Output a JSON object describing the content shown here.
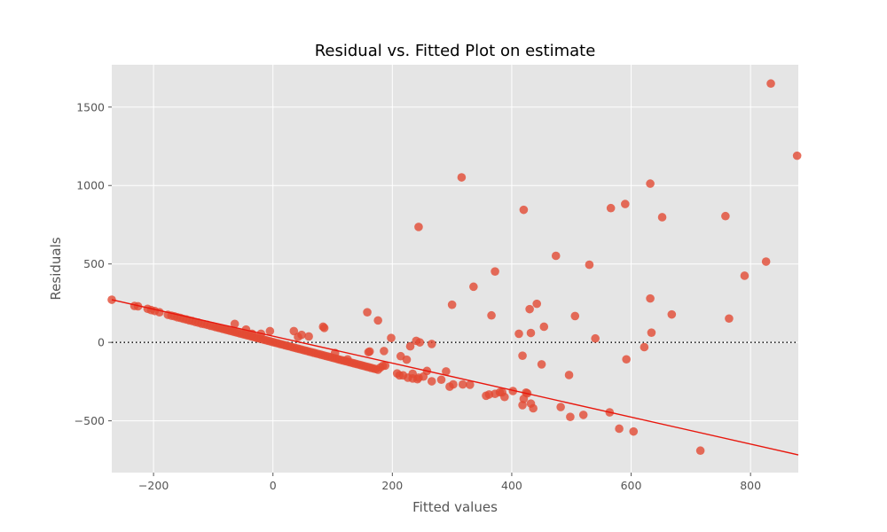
{
  "chart_data": {
    "type": "scatter",
    "title": "Residual vs. Fitted Plot on estimate",
    "xlabel": "Fitted values",
    "ylabel": "Residuals",
    "xlim": [
      -270,
      880
    ],
    "ylim": [
      -830,
      1770
    ],
    "xticks": [
      -200,
      0,
      200,
      400,
      600,
      800
    ],
    "yticks": [
      -500,
      0,
      500,
      1000,
      1500
    ],
    "xtick_labels": [
      "−200",
      "0",
      "200",
      "400",
      "600",
      "800"
    ],
    "ytick_labels": [
      "−500",
      "0",
      "500",
      "1000",
      "1500"
    ],
    "grid": true,
    "legend": "none",
    "colors": {
      "background": "#e5e5e5",
      "points": "#e24a33",
      "fit_line": "#e8170d",
      "zero_line": "#222222"
    },
    "fit_line": {
      "x": [
        -270,
        880
      ],
      "y": [
        272,
        -717
      ]
    },
    "zero_line": {
      "y": 0
    },
    "series": [
      {
        "x": [
          -270,
          -232,
          -226,
          -210,
          -204,
          -198,
          -190,
          -176,
          -170,
          -165,
          -160,
          -155,
          -150,
          -145,
          -140,
          -135,
          -130,
          -125,
          -120,
          -115,
          -110,
          -105,
          -100,
          -96,
          -92,
          -88,
          -84,
          -80,
          -76,
          -72,
          -68,
          -64,
          -60,
          -56,
          -52,
          -48,
          -44,
          -40,
          -36,
          -32,
          -28,
          -24,
          -20,
          -16,
          -12,
          -8,
          -4,
          0,
          4,
          8,
          12,
          16,
          20,
          24,
          28,
          32,
          36,
          40,
          44,
          48,
          52,
          56,
          60,
          64,
          68,
          72,
          76,
          80,
          84,
          88,
          92,
          96,
          100,
          104,
          108,
          112,
          116,
          120,
          124,
          128,
          132,
          136,
          140,
          144,
          148,
          152,
          156,
          160,
          164,
          168,
          172,
          176,
          180,
          184,
          188,
          -64,
          -45,
          -35,
          -20,
          -5,
          35,
          42,
          48,
          60,
          84,
          86,
          104,
          125,
          160,
          162,
          186,
          198,
          158,
          176,
          208,
          214,
          218,
          224,
          230,
          234,
          240,
          244,
          252,
          258,
          266,
          282,
          290,
          296,
          302,
          318,
          330,
          357,
          362,
          372,
          380,
          384,
          388,
          402,
          418,
          420,
          424,
          426,
          432,
          436,
          482,
          498,
          520,
          244,
          316,
          420,
          474,
          530,
          566,
          590,
          632,
          652,
          758,
          834,
          878,
          246,
          266,
          300,
          336,
          366,
          372,
          412,
          418,
          430,
          432,
          442,
          450,
          454,
          496,
          506,
          540,
          564,
          580,
          592,
          604,
          622,
          632,
          634,
          668,
          716,
          764,
          790,
          826,
          212,
          226,
          234,
          242
        ],
        "y": [
          272,
          232,
          230,
          214,
          206,
          200,
          192,
          176,
          170,
          166,
          160,
          156,
          150,
          146,
          140,
          136,
          130,
          126,
          120,
          116,
          112,
          106,
          102,
          98,
          94,
          90,
          86,
          82,
          78,
          74,
          70,
          66,
          62,
          58,
          54,
          50,
          46,
          42,
          38,
          34,
          30,
          26,
          22,
          18,
          14,
          10,
          6,
          2,
          -2,
          -6,
          -10,
          -14,
          -18,
          -22,
          -26,
          -30,
          -34,
          -38,
          -42,
          -46,
          -50,
          -54,
          -58,
          -62,
          -66,
          -70,
          -74,
          -78,
          -82,
          -86,
          -90,
          -94,
          -98,
          -102,
          -106,
          -110,
          -114,
          -118,
          -122,
          -126,
          -130,
          -134,
          -138,
          -142,
          -146,
          -150,
          -154,
          -158,
          -162,
          -166,
          -170,
          -174,
          -160,
          -150,
          -148,
          118,
          82,
          55,
          55,
          72,
          72,
          35,
          48,
          38,
          100,
          92,
          -68,
          -108,
          -62,
          -58,
          -55,
          28,
          192,
          140,
          -198,
          -88,
          -210,
          -110,
          -25,
          -230,
          10,
          -225,
          -218,
          -182,
          -10,
          -238,
          -185,
          -282,
          -268,
          -268,
          -270,
          -340,
          -332,
          -328,
          -318,
          -318,
          -348,
          -310,
          -400,
          -360,
          -320,
          -325,
          -390,
          -420,
          -412,
          -475,
          -462,
          736,
          1052,
          845,
          552,
          495,
          856,
          882,
          1012,
          798,
          805,
          1650,
          1190,
          0,
          -248,
          240,
          355,
          172,
          452,
          55,
          -85,
          212,
          60,
          246,
          -140,
          100,
          -208,
          168,
          25,
          -446,
          -550,
          -108,
          -568,
          -30,
          280,
          62,
          178,
          -690,
          152,
          425,
          515,
          -210,
          -225,
          -200,
          -235
        ]
      }
    ]
  }
}
